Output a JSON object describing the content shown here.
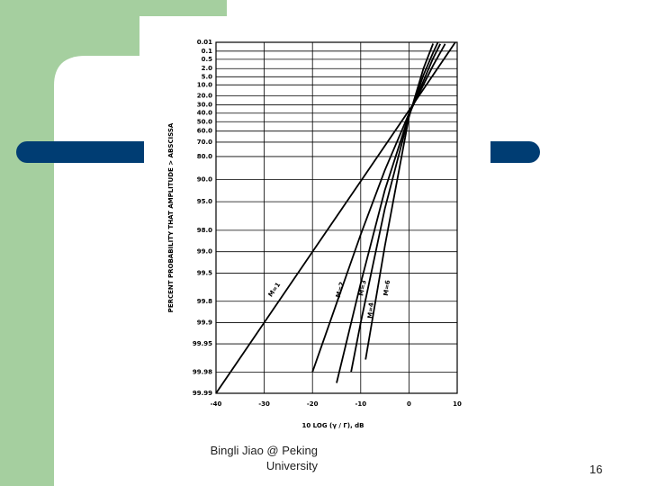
{
  "chart_data": {
    "type": "line",
    "x_label": "10 LOG (γ / Γ), dB",
    "y_label": "PERCENT PROBABILITY THAT AMPLITUDE > ABSCISSA",
    "y_scale": "weibull-probability",
    "xlim": [
      -40,
      10
    ],
    "xticks": [
      -40,
      -30,
      -20,
      -10,
      0,
      10
    ],
    "ylim": [
      99.99,
      0.01
    ],
    "yticks": [
      0.01,
      0.1,
      0.5,
      {
        "value": 2,
        "label": "2.0"
      },
      {
        "value": 5,
        "label": "5.0"
      },
      {
        "value": 10,
        "label": "10.0"
      },
      {
        "value": 20,
        "label": "20.0"
      },
      {
        "value": 30,
        "label": "30.0"
      },
      {
        "value": 40,
        "label": "40.0"
      },
      {
        "value": 50,
        "label": "50.0"
      },
      {
        "value": 60,
        "label": "60.0"
      },
      {
        "value": 70,
        "label": "70.0"
      },
      {
        "value": 80,
        "label": "80.0"
      },
      {
        "value": 90,
        "label": "90.0"
      },
      {
        "value": 95,
        "label": "95.0"
      },
      {
        "value": 98,
        "label": "98.0"
      },
      {
        "value": 99,
        "label": "99.0"
      },
      99.5,
      99.8,
      99.9,
      99.95,
      99.98,
      99.99
    ],
    "grid": true,
    "series": [
      {
        "name": "M=1",
        "color": "#000000",
        "x": [
          -40,
          -30,
          -20,
          -10,
          0,
          5,
          9.6
        ],
        "values": [
          99.99,
          99.9,
          99.0,
          90.5,
          36.8,
          4.2,
          0.01
        ]
      },
      {
        "name": "M=2",
        "color": "#000000",
        "x": [
          -20,
          -10,
          -5,
          0,
          5,
          7.5
        ],
        "values": [
          99.98,
          98.25,
          86.7,
          40.6,
          1.32,
          0.016
        ]
      },
      {
        "name": "M=3",
        "color": "#000000",
        "x": [
          -15,
          -10,
          -5,
          0,
          5,
          6.5
        ],
        "values": [
          99.986,
          99.64,
          92.8,
          42.3,
          0.42,
          0.016
        ]
      },
      {
        "name": "M=4",
        "color": "#000000",
        "x": [
          -12,
          -10,
          -5,
          0,
          3,
          5,
          6
        ],
        "values": [
          99.98,
          99.9,
          96.0,
          43.3,
          4.2,
          0.14,
          0.01
        ]
      },
      {
        "name": "M=6",
        "color": "#000000",
        "x": [
          -9,
          -5,
          0,
          3,
          5
        ],
        "values": [
          99.97,
          98.8,
          44.6,
          2.0,
          0.015
        ]
      }
    ]
  },
  "footer": {
    "author": "Bingli Jiao @ Peking University",
    "page": "16"
  }
}
